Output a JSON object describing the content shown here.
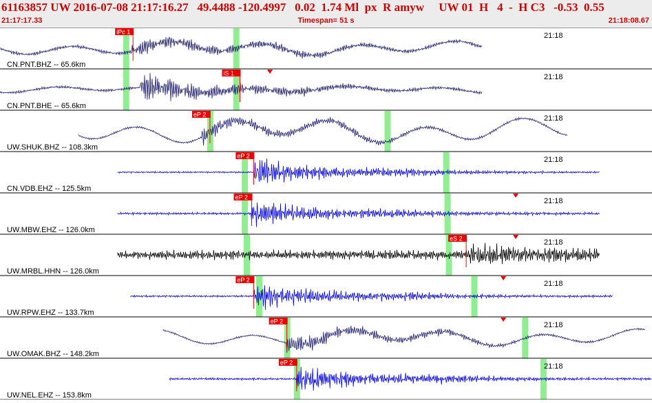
{
  "header": {
    "title": "61163857 UW 2016-07-08 21:17:16.27   49.4488 -120.4997   0.02  1.74 Ml  px  R amyw     UW 01  H   4  -  H C3   -0.53  0.55",
    "start_time": "21:17:17.33",
    "timespan": "Timespan=  51 s",
    "end_time": "21:18:08.67"
  },
  "colors": {
    "trace_navy": "#1a1a6e",
    "trace_blue": "#0000ee",
    "trace_black": "#000000",
    "window_green": "#90ee90",
    "pick_red": "#ee0000"
  },
  "traces": [
    {
      "label": "CN.PNT.BHZ -- 65.6km",
      "time_mark": "21:18",
      "color": "navy",
      "start": 0.0,
      "end": 0.74,
      "onset": 0.2,
      "amp": 0.55,
      "bg": 0.1,
      "freq": 2.4,
      "slow": 0.25,
      "greens": [
        0.193,
        0.362
      ],
      "picks": [
        {
          "text": "iPc 1",
          "pos": 0.204,
          "line": true
        }
      ],
      "triangles": []
    },
    {
      "label": "CN.PNT.BHE -- 65.6km",
      "time_mark": "21:18",
      "color": "navy",
      "start": 0.0,
      "end": 0.74,
      "onset": 0.215,
      "amp": 0.9,
      "bg": 0.08,
      "freq": 2.4,
      "slow": 0.12,
      "greens": [
        0.193,
        0.362
      ],
      "picks": [
        {
          "text": "iS 1",
          "pos": 0.368,
          "line": true
        }
      ],
      "triangles": [
        0.414
      ]
    },
    {
      "label": "UW.SHUK.BHZ -- 108.3km",
      "time_mark": "21:18",
      "color": "navy",
      "start": 0.12,
      "end": 0.87,
      "onset": 0.31,
      "amp": 0.5,
      "bg": 0.06,
      "freq": 2.2,
      "slow": 0.45,
      "greens": [
        0.322,
        0.594
      ],
      "picks": [
        {
          "text": "eP 2",
          "pos": 0.322,
          "line": true
        }
      ],
      "triangles": []
    },
    {
      "label": "CN.VDB.EHZ -- 125.5km",
      "time_mark": "21:18",
      "color": "blue",
      "start": 0.18,
      "end": 0.92,
      "onset": 0.39,
      "amp": 0.85,
      "bg": 0.05,
      "freq": 2.6,
      "slow": 0.0,
      "greens": [
        0.375,
        0.684
      ],
      "picks": [
        {
          "text": "eP 2",
          "pos": 0.389,
          "line": true
        }
      ],
      "triangles": []
    },
    {
      "label": "UW.MBW.EHZ -- 126.0km",
      "time_mark": "21:18",
      "color": "blue",
      "start": 0.18,
      "end": 0.92,
      "onset": 0.385,
      "amp": 0.8,
      "bg": 0.07,
      "freq": 2.6,
      "slow": 0.0,
      "greens": [
        0.375,
        0.686
      ],
      "picks": [
        {
          "text": "eP 2",
          "pos": 0.386,
          "line": true
        }
      ],
      "triangles": [
        0.791
      ]
    },
    {
      "label": "UW.MRBL.HHN -- 126.0km",
      "time_mark": "21:18",
      "color": "black",
      "start": 0.18,
      "end": 0.92,
      "onset": 0.72,
      "amp": 0.75,
      "bg": 0.28,
      "freq": 2.6,
      "slow": 0.0,
      "greens": [
        0.378,
        0.688
      ],
      "picks": [
        {
          "text": "eS 2",
          "pos": 0.715,
          "line": true
        }
      ],
      "triangles": [
        0.791
      ]
    },
    {
      "label": "UW.RPW.EHZ -- 133.7km",
      "time_mark": "21:18",
      "color": "blue",
      "start": 0.2,
      "end": 0.94,
      "onset": 0.39,
      "amp": 0.85,
      "bg": 0.06,
      "freq": 2.6,
      "slow": 0.0,
      "greens": [
        0.397,
        0.727
      ],
      "picks": [
        {
          "text": "eP 2",
          "pos": 0.389,
          "line": true
        }
      ],
      "triangles": [
        0.772
      ]
    },
    {
      "label": "UW.OMAK.BHZ -- 148.2km",
      "time_mark": "21:18",
      "color": "navy",
      "start": 0.25,
      "end": 0.99,
      "onset": 0.44,
      "amp": 0.6,
      "bg": 0.05,
      "freq": 2.2,
      "slow": 0.3,
      "greens": [
        0.44,
        0.805
      ],
      "picks": [
        {
          "text": "eP 2",
          "pos": 0.44,
          "line": true
        }
      ],
      "triangles": [
        0.772
      ]
    },
    {
      "label": "UW.NEL.EHZ -- 153.8km",
      "time_mark": "21:18",
      "color": "blue",
      "start": 0.26,
      "end": 1.0,
      "onset": 0.455,
      "amp": 0.85,
      "bg": 0.07,
      "freq": 2.6,
      "slow": 0.0,
      "greens": [
        0.455,
        0.833
      ],
      "picks": [
        {
          "text": "eP 2",
          "pos": 0.455,
          "line": true
        }
      ],
      "triangles": []
    }
  ]
}
